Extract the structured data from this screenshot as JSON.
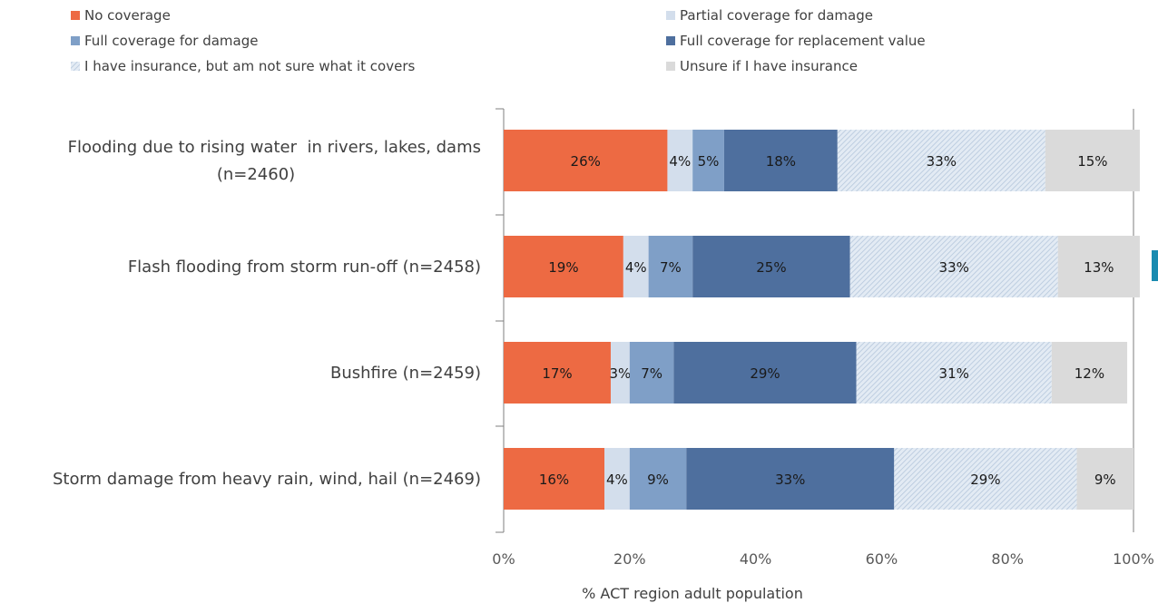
{
  "colors": {
    "no_coverage": "#ED6A43",
    "partial_damage": "#D3DEEC",
    "full_damage": "#7F9FC7",
    "full_replacement": "#4E6F9E",
    "not_sure": "#E3EBF4",
    "not_sure_hatch": "#B5C7DC",
    "unsure_insurance": "#DADADA",
    "axis": "#7F7F7F",
    "side_tab": "#1A8BB0"
  },
  "chart_data": {
    "type": "bar",
    "orientation": "horizontal",
    "stacked": true,
    "xlabel": "% ACT region adult population",
    "ylabel": "",
    "xlim": [
      0,
      100
    ],
    "x_ticks": [
      "0%",
      "20%",
      "40%",
      "60%",
      "80%",
      "100%"
    ],
    "legend_position": "top",
    "categories": [
      [
        "Flooding due to rising water  in rivers, lakes, dams",
        "(n=2460)"
      ],
      [
        "Flash flooding from storm run-off (n=2458)"
      ],
      [
        "Bushfire (n=2459)"
      ],
      [
        "Storm damage from heavy rain, wind, hail (n=2469)"
      ]
    ],
    "series": [
      {
        "name": "No coverage",
        "color_key": "no_coverage",
        "values": [
          26,
          19,
          17,
          16
        ],
        "labels": [
          "26%",
          "19%",
          "17%",
          "16%"
        ]
      },
      {
        "name": "Partial coverage for damage",
        "color_key": "partial_damage",
        "values": [
          4,
          4,
          3,
          4
        ],
        "labels": [
          "4%",
          "4%",
          "3%",
          "4%"
        ]
      },
      {
        "name": "Full coverage for damage",
        "color_key": "full_damage",
        "values": [
          5,
          7,
          7,
          9
        ],
        "labels": [
          "5%",
          "7%",
          "7%",
          "9%"
        ]
      },
      {
        "name": "Full coverage for replacement value",
        "color_key": "full_replacement",
        "values": [
          18,
          25,
          29,
          33
        ],
        "labels": [
          "18%",
          "25%",
          "29%",
          "33%"
        ]
      },
      {
        "name": "I have insurance, but am not sure what it covers",
        "color_key": "not_sure",
        "hatched": true,
        "values": [
          33,
          33,
          31,
          29
        ],
        "labels": [
          "33%",
          "33%",
          "31%",
          "29%"
        ]
      },
      {
        "name": "Unsure if I have insurance",
        "color_key": "unsure_insurance",
        "values": [
          15,
          13,
          12,
          9
        ],
        "labels": [
          "15%",
          "13%",
          "12%",
          "9%"
        ]
      }
    ],
    "legend_order": [
      0,
      1,
      2,
      3,
      4,
      5
    ]
  }
}
